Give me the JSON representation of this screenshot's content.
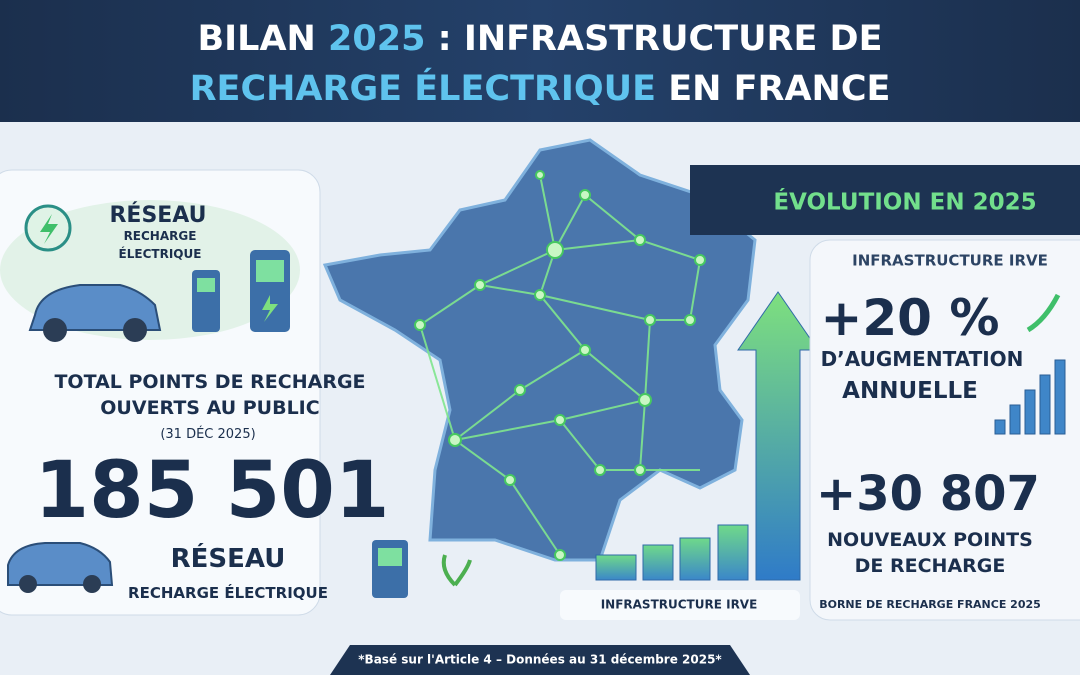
{
  "header": {
    "title_parts": [
      "BILAN ",
      "2025",
      " : INFRASTRUCTURE DE",
      "RECHARGE ÉLECTRIQUE",
      " EN FRANCE"
    ]
  },
  "left_panel": {
    "badge": [
      "RÉSEAU",
      "RECHARGE",
      "ÉLECTRIQUE"
    ],
    "total_label": [
      "TOTAL POINTS DE RECHARGE",
      "OUVERTS AU PUBLIC"
    ],
    "date": "(31 DÉC 2025)",
    "total_value": "185 501",
    "network_title": "RÉSEAU",
    "network_subtitle": "RECHARGE ÉLECTRIQUE"
  },
  "center": {
    "caption": "INFRASTRUCTURE IRVE"
  },
  "right_panel": {
    "header": "ÉVOLUTION EN 2025",
    "subheader": "INFRASTRUCTURE IRVE",
    "growth_value": "+20 %",
    "growth_label": [
      "D’AUGMENTATION",
      "ANNUELLE"
    ],
    "new_value": "+30 807",
    "new_label": [
      "NOUVEAUX POINTS",
      "DE RECHARGE"
    ],
    "caption": "BORNE DE RECHARGE FRANCE 2025"
  },
  "footer": {
    "note": "*Basé sur l'Article 4 – Données au 31 décembre 2025*"
  }
}
